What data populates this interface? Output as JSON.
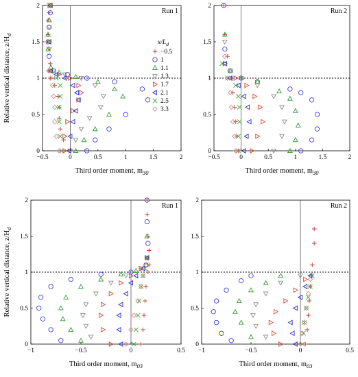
{
  "figure": {
    "ylabel": "Relative vertical distance, z/H_d"
  },
  "legend": {
    "title": "x/L_d",
    "entries": [
      {
        "label": "−0.5",
        "marker": "plus",
        "color": "#c0392b"
      },
      {
        "label": "1",
        "marker": "circle",
        "color": "#3a3ad8"
      },
      {
        "label": "1.1",
        "marker": "triangle-up",
        "color": "#2e9a2e"
      },
      {
        "label": "1.3",
        "marker": "triangle-down",
        "color": "#8a8a8a"
      },
      {
        "label": "1.7",
        "marker": "triangle-right",
        "color": "#e0452f"
      },
      {
        "label": "2.1",
        "marker": "triangle-left",
        "color": "#2a2ad0"
      },
      {
        "label": "2.5",
        "marker": "x",
        "color": "#3aaa3a"
      },
      {
        "label": "3.3",
        "marker": "diamond",
        "color": "#d98a8a"
      }
    ]
  },
  "chart_data": [
    {
      "type": "scatter",
      "panel": "top-left",
      "run_label": "Run 1",
      "xlabel": "Third order moment, m_30",
      "ylabel": "Relative vertical distance, z/H_d",
      "xlim": [
        -0.5,
        2
      ],
      "ylim": [
        0,
        2
      ],
      "xticks": [
        "−0.5",
        "0",
        "0.5",
        "1",
        "1.5",
        "2"
      ],
      "yticks": [
        "0",
        "0.5",
        "1",
        "1.5",
        "2"
      ],
      "reference_lines": {
        "vertical_x": 0,
        "horizontal_dotted_y": 1
      },
      "legend_placement": "right",
      "series": [
        {
          "name": "−0.5",
          "x": [
            -0.02,
            -0.12,
            -0.18,
            -0.2,
            -0.2,
            -0.22,
            -0.28,
            -0.36,
            -0.4,
            -0.36,
            -0.38,
            -0.4,
            -0.4,
            -0.38,
            -0.38
          ],
          "y": [
            0.0,
            0.15,
            0.3,
            0.45,
            0.6,
            0.75,
            0.9,
            1.0,
            1.1,
            1.2,
            1.4,
            1.6,
            1.8,
            1.9,
            2.0
          ]
        },
        {
          "name": "1",
          "x": [
            0.3,
            0.45,
            0.7,
            1.0,
            1.4,
            1.3,
            0.8,
            0.3,
            -0.05,
            -0.3,
            -0.38,
            -0.4,
            -0.38,
            -0.36,
            -0.36
          ],
          "y": [
            0.0,
            0.15,
            0.3,
            0.5,
            0.7,
            0.85,
            0.95,
            1.0,
            1.05,
            1.1,
            1.3,
            1.5,
            1.7,
            1.9,
            2.0
          ]
        },
        {
          "name": "1.1",
          "x": [
            0.1,
            0.25,
            0.45,
            0.7,
            0.95,
            0.8,
            0.5,
            0.1,
            -0.2,
            -0.35,
            -0.4,
            -0.4,
            -0.38,
            -0.36
          ],
          "y": [
            0.0,
            0.15,
            0.3,
            0.5,
            0.75,
            0.85,
            0.95,
            1.02,
            1.08,
            1.15,
            1.4,
            1.6,
            1.8,
            2.0
          ]
        },
        {
          "name": "1.3",
          "x": [
            0.0,
            0.1,
            0.2,
            0.35,
            0.55,
            0.6,
            0.45,
            0.2,
            -0.1,
            -0.3,
            -0.38,
            -0.38,
            -0.36
          ],
          "y": [
            0.0,
            0.15,
            0.3,
            0.45,
            0.6,
            0.75,
            0.9,
            1.0,
            1.05,
            1.1,
            1.4,
            1.7,
            2.0
          ]
        },
        {
          "name": "1.7",
          "x": [
            -0.1,
            -0.1,
            -0.05,
            0.05,
            0.15,
            0.2,
            0.15,
            0.0,
            -0.2,
            -0.35,
            -0.38,
            -0.37
          ],
          "y": [
            0.0,
            0.2,
            0.4,
            0.55,
            0.7,
            0.8,
            0.9,
            1.0,
            1.05,
            1.1,
            1.5,
            2.0
          ]
        },
        {
          "name": "2.1",
          "x": [
            -0.02,
            0.0,
            0.05,
            0.1,
            0.15,
            0.12,
            0.05,
            -0.1,
            -0.25,
            -0.35,
            -0.38,
            -0.36
          ],
          "y": [
            0.0,
            0.2,
            0.4,
            0.55,
            0.7,
            0.8,
            0.9,
            1.0,
            1.05,
            1.1,
            1.5,
            2.0
          ]
        },
        {
          "name": "2.5",
          "x": [
            -0.15,
            -0.18,
            -0.2,
            -0.2,
            -0.18,
            -0.18,
            -0.25,
            -0.35,
            -0.38,
            -0.37
          ],
          "y": [
            0.0,
            0.2,
            0.4,
            0.6,
            0.75,
            0.9,
            1.0,
            1.1,
            1.5,
            2.0
          ]
        },
        {
          "name": "3.3",
          "x": [
            -0.2,
            -0.25,
            -0.28,
            -0.28,
            -0.3,
            -0.32,
            -0.35,
            -0.38,
            -0.4,
            -0.38
          ],
          "y": [
            0.0,
            0.2,
            0.4,
            0.6,
            0.75,
            0.9,
            1.0,
            1.1,
            1.5,
            2.0
          ]
        }
      ]
    },
    {
      "type": "scatter",
      "panel": "top-right",
      "run_label": "Run 2",
      "xlabel": "Third order moment, m_30",
      "ylabel": "",
      "xlim": [
        -0.5,
        2
      ],
      "ylim": [
        0,
        2
      ],
      "xticks": [
        "−0.5",
        "0",
        "0.5",
        "1",
        "1.5",
        "2"
      ],
      "yticks": [
        "0",
        "0.5",
        "1",
        "1.5",
        "2"
      ],
      "reference_lines": {
        "vertical_x": 0,
        "horizontal_dotted_y": 1
      },
      "series": [
        {
          "name": "−0.5",
          "x": [
            -0.05,
            -0.08,
            -0.1,
            -0.12,
            -0.15,
            -0.18,
            -0.25,
            -0.3,
            -0.32
          ],
          "y": [
            0.0,
            0.2,
            0.4,
            0.6,
            0.8,
            1.0,
            1.3,
            1.6,
            2.0
          ]
        },
        {
          "name": "1",
          "x": [
            1.1,
            1.3,
            1.4,
            1.4,
            1.3,
            1.1,
            0.9,
            0.3,
            0.0,
            -0.2,
            -0.3,
            -0.32
          ],
          "y": [
            0.0,
            0.15,
            0.3,
            0.5,
            0.7,
            0.8,
            0.85,
            0.95,
            1.0,
            1.1,
            1.4,
            2.0
          ]
        },
        {
          "name": "1.1",
          "x": [
            0.9,
            1.0,
            1.05,
            1.0,
            0.9,
            0.7,
            0.3,
            0.0,
            -0.2,
            -0.3
          ],
          "y": [
            0.0,
            0.15,
            0.35,
            0.55,
            0.72,
            0.82,
            0.95,
            1.0,
            1.1,
            1.6
          ]
        },
        {
          "name": "1.3",
          "x": [
            0.6,
            0.75,
            0.8,
            0.75,
            0.6,
            0.3,
            0.0,
            -0.2,
            -0.3
          ],
          "y": [
            0.0,
            0.2,
            0.4,
            0.6,
            0.75,
            0.9,
            1.0,
            1.1,
            1.5
          ]
        },
        {
          "name": "1.7",
          "x": [
            0.2,
            0.3,
            0.4,
            0.35,
            0.25,
            0.1,
            -0.1,
            -0.3
          ],
          "y": [
            0.0,
            0.2,
            0.4,
            0.6,
            0.75,
            0.9,
            1.0,
            1.2
          ]
        },
        {
          "name": "2.1",
          "x": [
            0.05,
            0.1,
            0.15,
            0.12,
            0.05,
            -0.05,
            -0.2,
            -0.3
          ],
          "y": [
            0.0,
            0.2,
            0.4,
            0.6,
            0.75,
            0.9,
            1.0,
            1.2
          ]
        },
        {
          "name": "2.5",
          "x": [
            -0.05,
            -0.05,
            -0.03,
            -0.03,
            -0.05,
            -0.1,
            -0.25,
            -0.35
          ],
          "y": [
            0.0,
            0.2,
            0.4,
            0.6,
            0.75,
            0.9,
            1.0,
            1.2
          ]
        },
        {
          "name": "3.3",
          "x": [
            -0.1,
            -0.12,
            -0.15,
            -0.18,
            -0.2,
            -0.25,
            -0.3
          ],
          "y": [
            0.0,
            0.2,
            0.4,
            0.6,
            0.8,
            1.0,
            1.3
          ]
        }
      ]
    },
    {
      "type": "scatter",
      "panel": "bottom-left",
      "run_label": "Run 1",
      "xlabel": "Third order moment, m_03",
      "ylabel": "Relative vertical distance, z/H_d",
      "xlim": [
        -1,
        0.5
      ],
      "ylim": [
        0,
        2
      ],
      "xticks": [
        "−1",
        "−0.5",
        "0",
        "0.5"
      ],
      "yticks": [
        "0",
        "0.5",
        "1",
        "1.5",
        "2"
      ],
      "reference_lines": {
        "vertical_x": 0,
        "horizontal_dotted_y": 1
      },
      "series": [
        {
          "name": "−0.5",
          "x": [
            0.1,
            0.12,
            0.13,
            0.14,
            0.15,
            0.17,
            0.18,
            0.18,
            0.17,
            0.16,
            0.16
          ],
          "y": [
            0.0,
            0.2,
            0.4,
            0.6,
            0.8,
            1.0,
            1.1,
            1.3,
            1.5,
            1.8,
            2.0
          ]
        },
        {
          "name": "1",
          "x": [
            -0.7,
            -0.8,
            -0.88,
            -0.92,
            -0.9,
            -0.8,
            -0.6,
            -0.3,
            0.0,
            0.15,
            0.17,
            0.16,
            0.16
          ],
          "y": [
            0.05,
            0.2,
            0.35,
            0.5,
            0.65,
            0.8,
            0.9,
            0.97,
            1.0,
            1.1,
            1.4,
            1.7,
            2.0
          ]
        },
        {
          "name": "1.1",
          "x": [
            -0.5,
            -0.6,
            -0.68,
            -0.7,
            -0.65,
            -0.5,
            -0.3,
            -0.1,
            0.05,
            0.15,
            0.16
          ],
          "y": [
            0.05,
            0.2,
            0.35,
            0.5,
            0.65,
            0.8,
            0.9,
            0.97,
            1.02,
            1.1,
            1.5
          ]
        },
        {
          "name": "1.3",
          "x": [
            -0.4,
            -0.45,
            -0.48,
            -0.45,
            -0.35,
            -0.2,
            -0.05,
            0.1,
            0.16
          ],
          "y": [
            0.1,
            0.25,
            0.4,
            0.55,
            0.7,
            0.85,
            0.95,
            1.05,
            1.2
          ]
        },
        {
          "name": "1.7",
          "x": [
            -0.2,
            -0.28,
            -0.3,
            -0.28,
            -0.2,
            -0.1,
            0.0,
            0.1,
            0.16
          ],
          "y": [
            0.0,
            0.2,
            0.4,
            0.55,
            0.7,
            0.85,
            0.95,
            1.05,
            1.2
          ]
        },
        {
          "name": "2.1",
          "x": [
            -0.1,
            -0.12,
            -0.12,
            -0.1,
            -0.05,
            0.0,
            0.05,
            0.12,
            0.16
          ],
          "y": [
            0.0,
            0.2,
            0.4,
            0.55,
            0.7,
            0.85,
            0.95,
            1.05,
            1.2
          ]
        },
        {
          "name": "2.5",
          "x": [
            0.03,
            0.05,
            0.07,
            0.08,
            0.1,
            0.12,
            0.14,
            0.16
          ],
          "y": [
            0.0,
            0.2,
            0.4,
            0.6,
            0.8,
            0.95,
            1.05,
            1.2
          ]
        },
        {
          "name": "3.3",
          "x": [
            -0.05,
            0.0,
            0.03,
            0.07,
            0.1,
            0.12,
            0.15
          ],
          "y": [
            0.0,
            0.2,
            0.4,
            0.6,
            0.8,
            0.95,
            1.1
          ]
        }
      ]
    },
    {
      "type": "scatter",
      "panel": "bottom-right",
      "run_label": "Run 2",
      "xlabel": "Third order moment, m_03",
      "ylabel": "",
      "xlim": [
        -1,
        0.5
      ],
      "ylim": [
        0,
        2
      ],
      "xticks": [
        "−1",
        "−0.5",
        "0",
        "0.5"
      ],
      "yticks": [
        "0",
        "0.5",
        "1",
        "1.5",
        "2"
      ],
      "reference_lines": {
        "vertical_x": 0,
        "horizontal_dotted_y": 1
      },
      "series": [
        {
          "name": "−0.5",
          "x": [
            0.05,
            0.07,
            0.08,
            0.09,
            0.1,
            0.11,
            0.12,
            0.14,
            0.14
          ],
          "y": [
            0.0,
            0.2,
            0.4,
            0.6,
            0.8,
            0.95,
            1.1,
            1.4,
            1.6
          ]
        },
        {
          "name": "1",
          "x": [
            -0.7,
            -0.8,
            -0.85,
            -0.88,
            -0.85,
            -0.75,
            -0.6,
            -0.5
          ],
          "y": [
            0.05,
            0.15,
            0.3,
            0.45,
            0.6,
            0.75,
            0.88,
            0.95
          ]
        },
        {
          "name": "1.1",
          "x": [
            -0.5,
            -0.6,
            -0.66,
            -0.62,
            -0.5,
            -0.35,
            -0.2
          ],
          "y": [
            0.1,
            0.3,
            0.45,
            0.6,
            0.75,
            0.85,
            0.95
          ]
        },
        {
          "name": "1.3",
          "x": [
            -0.35,
            -0.45,
            -0.48,
            -0.45,
            -0.35,
            -0.2,
            0.0
          ],
          "y": [
            0.1,
            0.25,
            0.4,
            0.55,
            0.7,
            0.85,
            0.95
          ]
        },
        {
          "name": "1.7",
          "x": [
            -0.2,
            -0.27,
            -0.3,
            -0.25,
            -0.15,
            -0.05,
            0.05
          ],
          "y": [
            0.0,
            0.15,
            0.3,
            0.45,
            0.6,
            0.75,
            0.9
          ]
        },
        {
          "name": "2.1",
          "x": [
            -0.05,
            -0.08,
            -0.1,
            -0.05,
            0.0,
            0.05,
            0.1
          ],
          "y": [
            0.0,
            0.15,
            0.3,
            0.5,
            0.65,
            0.8,
            0.95
          ]
        },
        {
          "name": "2.5",
          "x": [
            0.02,
            0.03,
            0.04,
            0.06,
            0.08,
            0.1,
            0.12
          ],
          "y": [
            0.0,
            0.15,
            0.3,
            0.5,
            0.65,
            0.8,
            0.95
          ]
        },
        {
          "name": "3.3",
          "x": [
            0.0,
            0.02,
            0.04,
            0.06,
            0.08,
            0.1
          ],
          "y": [
            0.0,
            0.15,
            0.3,
            0.5,
            0.7,
            0.9
          ]
        }
      ]
    }
  ]
}
